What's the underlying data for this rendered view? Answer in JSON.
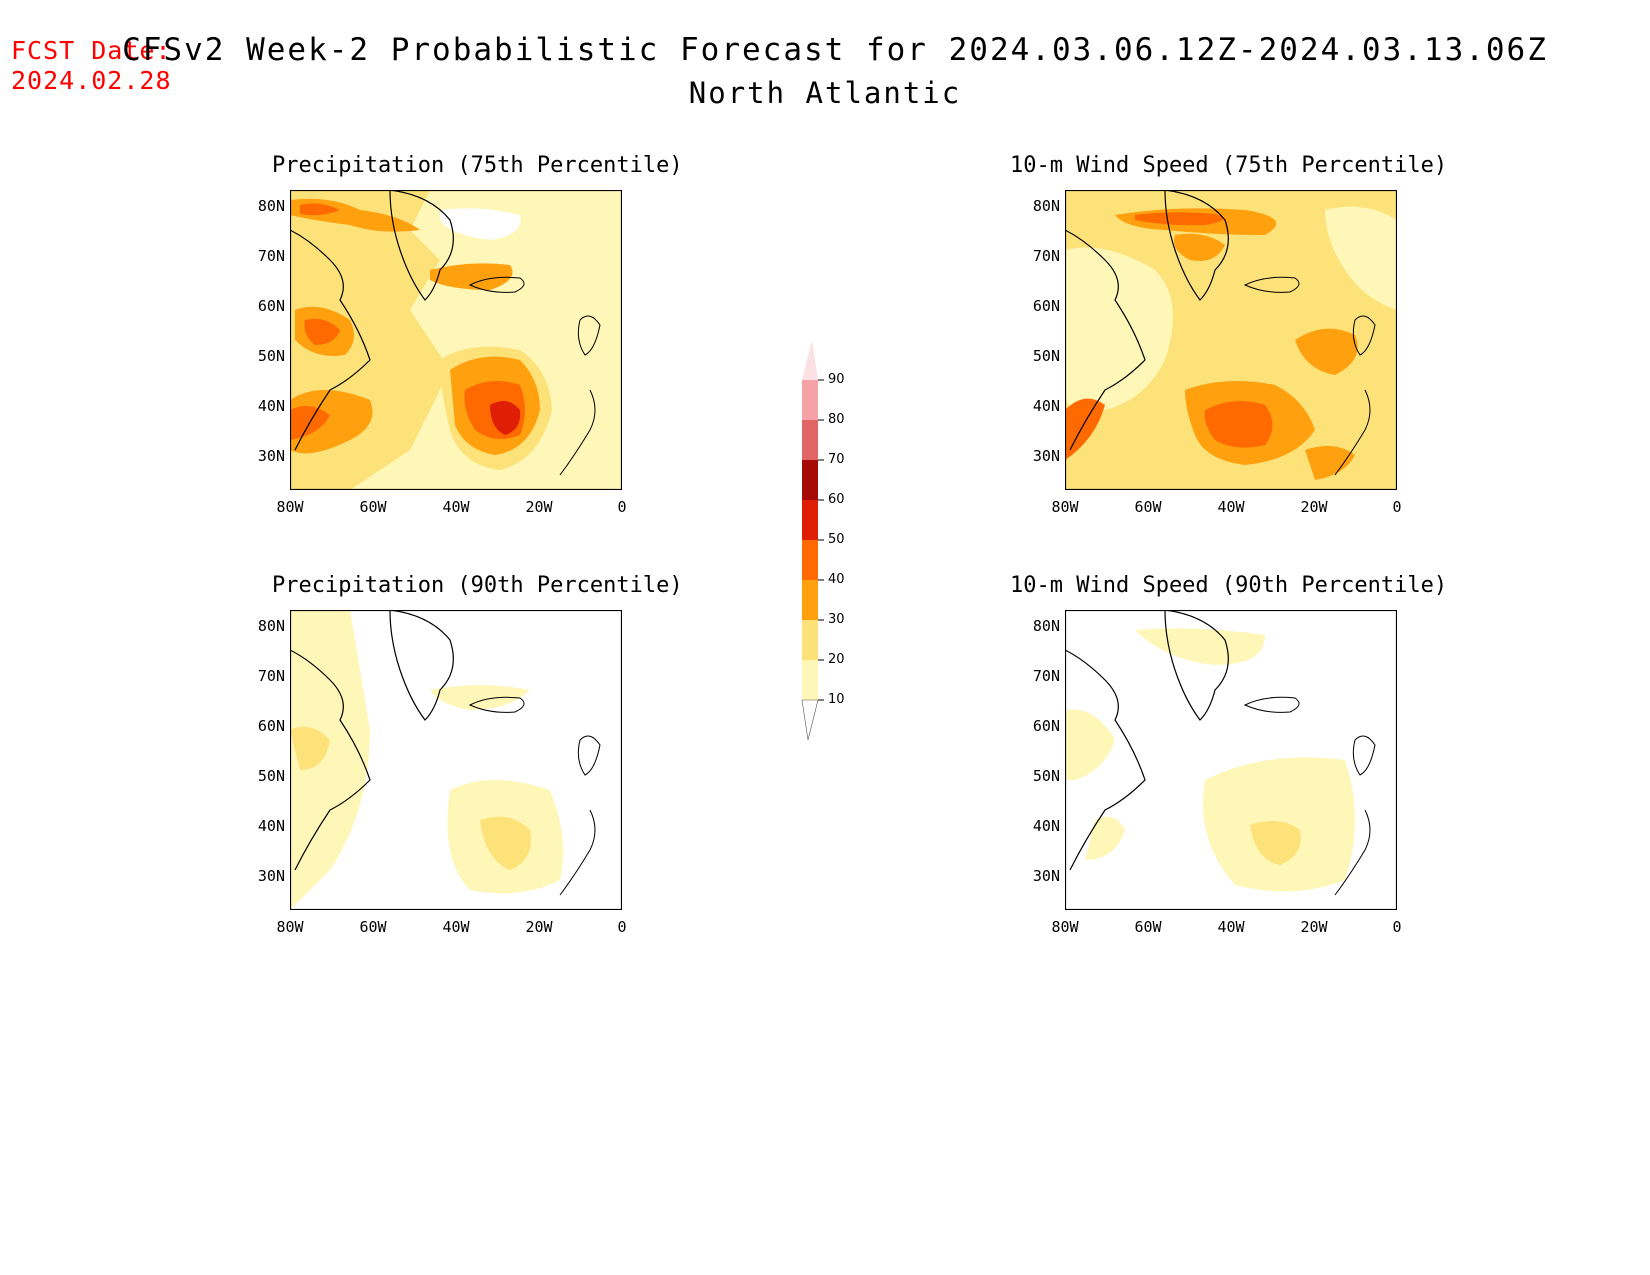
{
  "fcst": {
    "label": "FCST Date:",
    "date": "2024.02.28"
  },
  "title": {
    "main": "CFSv2 Week-2 Probabilistic Forecast for 2024.03.06.12Z-2024.03.13.06Z",
    "region": "North Atlantic"
  },
  "panels": [
    {
      "title": "Precipitation (75th Percentile)"
    },
    {
      "title": "10-m Wind Speed (75th Percentile)"
    },
    {
      "title": "Precipitation (90th Percentile)"
    },
    {
      "title": "10-m Wind Speed (90th Percentile)"
    }
  ],
  "axes": {
    "y_ticks": [
      "80N",
      "70N",
      "60N",
      "50N",
      "40N",
      "30N"
    ],
    "x_ticks": [
      "80W",
      "60W",
      "40W",
      "20W",
      "0"
    ]
  },
  "colorbar": {
    "levels": [
      "90",
      "80",
      "70",
      "60",
      "50",
      "40",
      "30",
      "20",
      "10"
    ],
    "colors": [
      "#fde0e3",
      "#f4a2a6",
      "#e06666",
      "#a50a05",
      "#e01e05",
      "#ff6a00",
      "#ffa00f",
      "#fde27a",
      "#fff7b8"
    ]
  }
}
